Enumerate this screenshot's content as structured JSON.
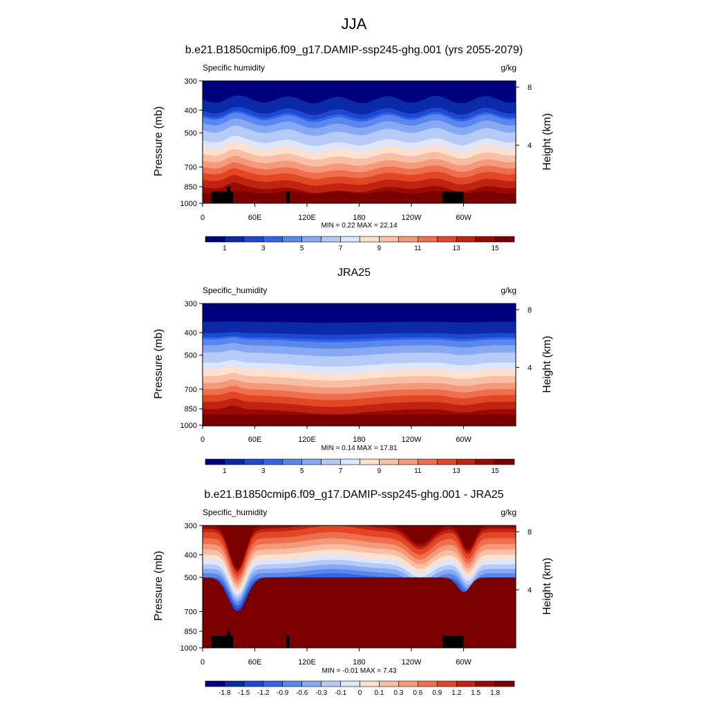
{
  "figure": {
    "title": "JJA"
  },
  "chart_data": [
    {
      "type": "heatmap",
      "title": "b.e21.B1850cmip6.f09_g17.DAMIP-ssp245-ghg.001 (yrs 2055-2079)",
      "left_string": "Specific humidity",
      "right_string": "g/kg",
      "xlabel": "",
      "ylabel": "Pressure (mb)",
      "y2label": "Height (km)",
      "x_ticks": [
        "0",
        "60E",
        "120E",
        "180",
        "120W",
        "60W"
      ],
      "x_tick_values": [
        0,
        60,
        120,
        180,
        240,
        300
      ],
      "xlim": [
        0,
        360
      ],
      "y_ticks": [
        "300",
        "400",
        "500",
        "700",
        "850",
        "1000"
      ],
      "y_tick_values": [
        300,
        400,
        500,
        700,
        850,
        1000
      ],
      "ylim": [
        1000,
        300
      ],
      "y2_ticks": [
        "8",
        "4"
      ],
      "y2_tick_values": [
        8,
        4
      ],
      "min_label": "MIN =   0.22  MAX =  22.14",
      "min": 0.22,
      "max": 22.14,
      "colorbar_labels": [
        "1",
        "3",
        "5",
        "7",
        "9",
        "11",
        "13",
        "15"
      ],
      "colorbar_levels": [
        1,
        2,
        3,
        4,
        5,
        6,
        7,
        8,
        9,
        10,
        11,
        12,
        13,
        14,
        15
      ],
      "colormap": [
        "#00007f",
        "#0a2aa8",
        "#1e48d2",
        "#3264e8",
        "#5a87ee",
        "#87a8f2",
        "#b5caf6",
        "#dde6fa",
        "#fde0d0",
        "#f9bfa5",
        "#f49a7a",
        "#ee6e4e",
        "#e24624",
        "#c02310",
        "#9a0a05",
        "#7a0000"
      ]
    },
    {
      "type": "heatmap",
      "title": "JRA25",
      "left_string": "Specific_humidity",
      "right_string": "g/kg",
      "xlabel": "",
      "ylabel": "Pressure (mb)",
      "y2label": "Height (km)",
      "x_ticks": [
        "0",
        "60E",
        "120E",
        "180",
        "120W",
        "60W"
      ],
      "x_tick_values": [
        0,
        60,
        120,
        180,
        240,
        300
      ],
      "xlim": [
        0,
        360
      ],
      "y_ticks": [
        "300",
        "400",
        "500",
        "700",
        "850",
        "1000"
      ],
      "y_tick_values": [
        300,
        400,
        500,
        700,
        850,
        1000
      ],
      "ylim": [
        1000,
        300
      ],
      "y2_ticks": [
        "8",
        "4"
      ],
      "y2_tick_values": [
        8,
        4
      ],
      "min_label": "MIN =   0.14  MAX =  17.81",
      "min": 0.14,
      "max": 17.81,
      "colorbar_labels": [
        "1",
        "3",
        "5",
        "7",
        "9",
        "11",
        "13",
        "15"
      ],
      "colorbar_levels": [
        1,
        2,
        3,
        4,
        5,
        6,
        7,
        8,
        9,
        10,
        11,
        12,
        13,
        14,
        15
      ],
      "colormap": [
        "#00007f",
        "#0a2aa8",
        "#1e48d2",
        "#3264e8",
        "#5a87ee",
        "#87a8f2",
        "#b5caf6",
        "#dde6fa",
        "#fde0d0",
        "#f9bfa5",
        "#f49a7a",
        "#ee6e4e",
        "#e24624",
        "#c02310",
        "#9a0a05",
        "#7a0000"
      ]
    },
    {
      "type": "heatmap",
      "title": "b.e21.B1850cmip6.f09_g17.DAMIP-ssp245-ghg.001 - JRA25",
      "left_string": "Specific_humidity",
      "right_string": "g/kg",
      "xlabel": "",
      "ylabel": "Pressure (mb)",
      "y2label": "Height (km)",
      "x_ticks": [
        "0",
        "60E",
        "120E",
        "180",
        "120W",
        "60W"
      ],
      "x_tick_values": [
        0,
        60,
        120,
        180,
        240,
        300
      ],
      "xlim": [
        0,
        360
      ],
      "y_ticks": [
        "300",
        "400",
        "500",
        "700",
        "850",
        "1000"
      ],
      "y_tick_values": [
        300,
        400,
        500,
        700,
        850,
        1000
      ],
      "ylim": [
        1000,
        300
      ],
      "y2_ticks": [
        "8",
        "4"
      ],
      "y2_tick_values": [
        8,
        4
      ],
      "min_label": "MIN =  -0.01  MAX =   7.43",
      "min": -0.01,
      "max": 7.43,
      "colorbar_labels": [
        "-1.8",
        "-1.5",
        "-1.2",
        "-0.9",
        "-0.6",
        "-0.3",
        "-0.1",
        "0",
        "0.1",
        "0.3",
        "0.6",
        "0.9",
        "1.2",
        "1.5",
        "1.8"
      ],
      "colorbar_levels": [
        -1.8,
        -1.5,
        -1.2,
        -0.9,
        -0.6,
        -0.3,
        -0.1,
        0,
        0.1,
        0.3,
        0.6,
        0.9,
        1.2,
        1.5,
        1.8
      ],
      "colormap": [
        "#00007f",
        "#0a2aa8",
        "#1e48d2",
        "#3264e8",
        "#5a87ee",
        "#87a8f2",
        "#b5caf6",
        "#dde6fa",
        "#fde0d0",
        "#f9bfa5",
        "#f49a7a",
        "#ee6e4e",
        "#e24624",
        "#c02310",
        "#9a0a05",
        "#7a0000"
      ]
    }
  ]
}
